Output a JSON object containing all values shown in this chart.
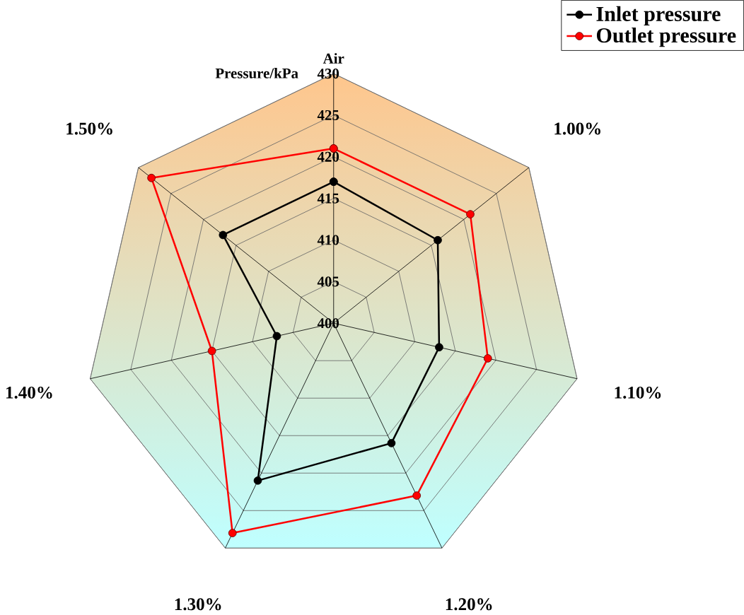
{
  "chart_data": {
    "type": "radar",
    "ylabel": "Pressure/kPa",
    "categories": [
      "Air",
      "1.00%",
      "1.10%",
      "1.20%",
      "1.30%",
      "1.40%",
      "1.50%"
    ],
    "series": [
      {
        "name": "Inlet pressure",
        "color": "#000000",
        "values": [
          417,
          416,
          413,
          416,
          421,
          407,
          417
        ]
      },
      {
        "name": "Outlet pressure",
        "color": "#ff0000",
        "values": [
          421,
          421,
          419,
          423,
          428,
          415,
          428
        ]
      }
    ],
    "ylim": [
      400,
      430
    ],
    "yticks": [
      400,
      405,
      410,
      415,
      420,
      425,
      430
    ],
    "grid": true,
    "legend": "top right",
    "marker": "circle"
  }
}
